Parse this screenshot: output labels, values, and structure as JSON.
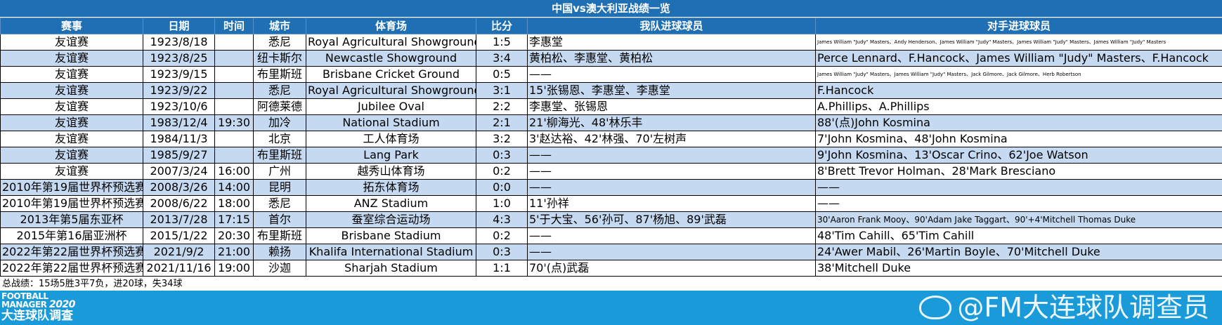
{
  "title": "中国vs澳大利亚战绩一览",
  "headers": [
    "赛事",
    "日期",
    "时间",
    "城市",
    "体育场",
    "比分",
    "我队进球球员",
    "对手进球球员"
  ],
  "rows": [
    [
      "友谊赛",
      "1923/8/18",
      "",
      "悉尼",
      "Royal Agricultural Showground",
      "1:5",
      "李惠堂",
      "James William \"Judy\" Masters、Andy Henderson、James William \"Judy\" Masters、James William \"Judy\" Masters、James William \"Judy\" Masters"
    ],
    [
      "友谊赛",
      "1923/8/25",
      "",
      "纽卡斯尔",
      "Newcastle Showground",
      "3:4",
      "黄柏松、李惠堂、黄柏松",
      "Perce Lennard、F.Hancock、James William \"Judy\" Masters、F.Hancock"
    ],
    [
      "友谊赛",
      "1923/9/15",
      "",
      "布里斯班",
      "Brisbane Cricket Ground",
      "0:5",
      "——",
      "James William \"Judy\" Masters、James William \"Judy\" Masters、Jack Gilmore、Jack Gilmore、Herb Robertson"
    ],
    [
      "友谊赛",
      "1923/9/22",
      "",
      "悉尼",
      "Royal Agricultural Showground",
      "3:1",
      "15'张锡恩、李惠堂、李惠堂",
      "F.Hancock"
    ],
    [
      "友谊赛",
      "1923/10/6",
      "",
      "阿德莱德",
      "Jubilee Oval",
      "2:2",
      "李惠堂、张锡恩",
      "A.Phillips、A.Phillips"
    ],
    [
      "友谊赛",
      "1983/12/4",
      "19:30",
      "加冷",
      "National Stadium",
      "2:1",
      "21'柳海光、48'林乐丰",
      "88'(点)John Kosmina"
    ],
    [
      "友谊赛",
      "1984/11/3",
      "",
      "北京",
      "工人体育场",
      "3:2",
      "3'赵达裕、42'林强、70'左树声",
      "7'John Kosmina、48'John Kosmina"
    ],
    [
      "友谊赛",
      "1985/9/27",
      "",
      "布里斯班",
      "Lang Park",
      "0:3",
      "——",
      "9'John Kosmina、13'Oscar Crino、62'Joe Watson"
    ],
    [
      "友谊赛",
      "2007/3/24",
      "16:00",
      "广州",
      "越秀山体育场",
      "0:2",
      "——",
      "8'Brett Trevor Holman、28'Mark Bresciano"
    ],
    [
      "2010年第19届世界杯预选赛",
      "2008/3/26",
      "14:00",
      "昆明",
      "拓东体育场",
      "0:0",
      "——",
      "——"
    ],
    [
      "2010年第19届世界杯预选赛",
      "2008/6/22",
      "18:00",
      "悉尼",
      "ANZ Stadium",
      "1:0",
      "11'孙祥",
      "——"
    ],
    [
      "2013年第5届东亚杯",
      "2013/7/28",
      "17:15",
      "首尔",
      "蚕室综合运动场",
      "4:3",
      "5'于大宝、56'孙可、87'杨旭、89'武磊",
      "30'Aaron Frank Mooy、90'Adam Jake Taggart、90'+4'Mitchell Thomas Duke"
    ],
    [
      "2015年第16届亚洲杯",
      "2015/1/22",
      "20:30",
      "布里斯班",
      "Brisbane Stadium",
      "0:2",
      "——",
      "48'Tim Cahill、65'Tim Cahill"
    ],
    [
      "2022年第22届世界杯预选赛",
      "2021/9/2",
      "21:00",
      "赖扬",
      "Khalifa International Stadium",
      "0:3",
      "——",
      "24'Awer Mabil、26'Martin Boyle、70'Mitchell Duke"
    ],
    [
      "2022年第22届世界杯预选赛",
      "2021/11/16",
      "19:00",
      "沙迦",
      "Sharjah Stadium",
      "1:1",
      "70'(点)武磊",
      "38'Mitchell Duke"
    ]
  ],
  "summary": "总战绩：15场5胜3平7负，进20球，失34球",
  "logo": {
    "line1": "FOOTBALL",
    "line2": "MANAGER",
    "year": "2020",
    "line3": "大连球队调查"
  },
  "watermark": "@FM大连球队调查员",
  "colors": {
    "header_blue": "#1e6fb3",
    "row_alt": "#c5d9f1",
    "footer_blue": "#1a9ad9"
  }
}
